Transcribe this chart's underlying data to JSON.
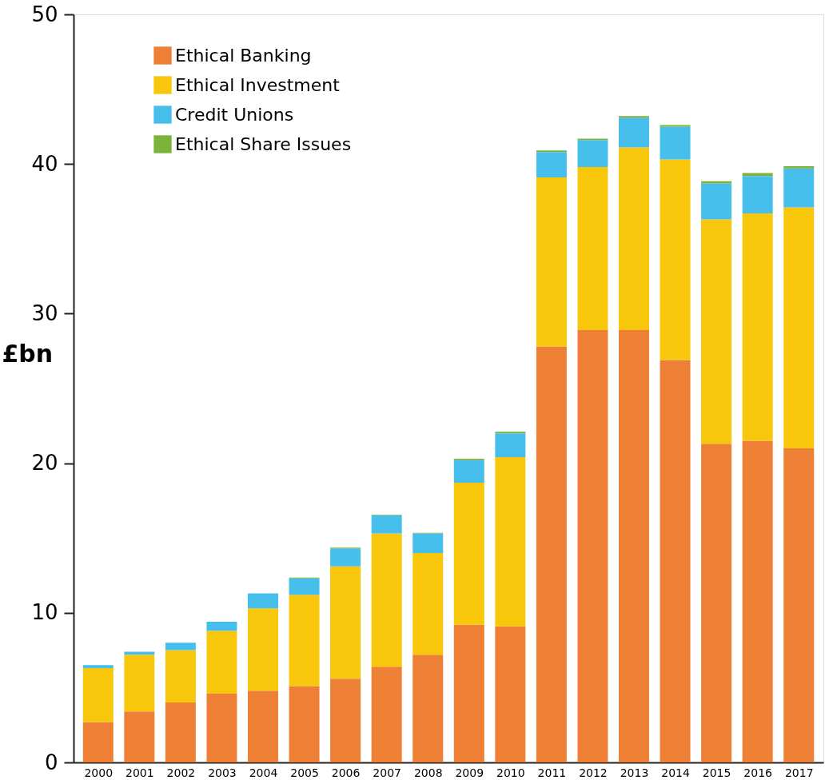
{
  "chart_data": {
    "type": "bar",
    "stacked": true,
    "ylabel": "£bn",
    "categories": [
      "2000",
      "2001",
      "2002",
      "2003",
      "2004",
      "2005",
      "2006",
      "2007",
      "2008",
      "2009",
      "2010",
      "2011",
      "2012",
      "2013",
      "2014",
      "2015",
      "2016",
      "2017"
    ],
    "series": [
      {
        "name": "Ethical Banking",
        "color": "#ee8035",
        "values": [
          2.7,
          3.4,
          4.0,
          4.6,
          4.8,
          5.1,
          5.6,
          6.4,
          7.2,
          9.2,
          9.1,
          27.8,
          28.9,
          28.9,
          26.9,
          21.3,
          21.5,
          21.0
        ]
      },
      {
        "name": "Ethical Investment",
        "color": "#f8c70c",
        "values": [
          3.6,
          3.8,
          3.5,
          4.2,
          5.5,
          6.1,
          7.5,
          8.9,
          6.8,
          9.5,
          11.3,
          11.3,
          10.9,
          12.2,
          13.4,
          15.0,
          15.2,
          16.1
        ]
      },
      {
        "name": "Credit Unions",
        "color": "#46bfec",
        "values": [
          0.2,
          0.2,
          0.5,
          0.6,
          1.0,
          1.1,
          1.2,
          1.2,
          1.3,
          1.5,
          1.6,
          1.7,
          1.8,
          2.0,
          2.2,
          2.4,
          2.5,
          2.6
        ]
      },
      {
        "name": "Ethical Share Issues",
        "color": "#7db23b",
        "values": [
          0,
          0,
          0,
          0,
          0,
          0.05,
          0.05,
          0.05,
          0.05,
          0.1,
          0.1,
          0.1,
          0.1,
          0.1,
          0.1,
          0.15,
          0.2,
          0.15
        ]
      }
    ],
    "ylim": [
      0,
      50
    ],
    "yticks": [
      0,
      10,
      20,
      30,
      40,
      50
    ],
    "grid": false,
    "legend": "top left"
  }
}
